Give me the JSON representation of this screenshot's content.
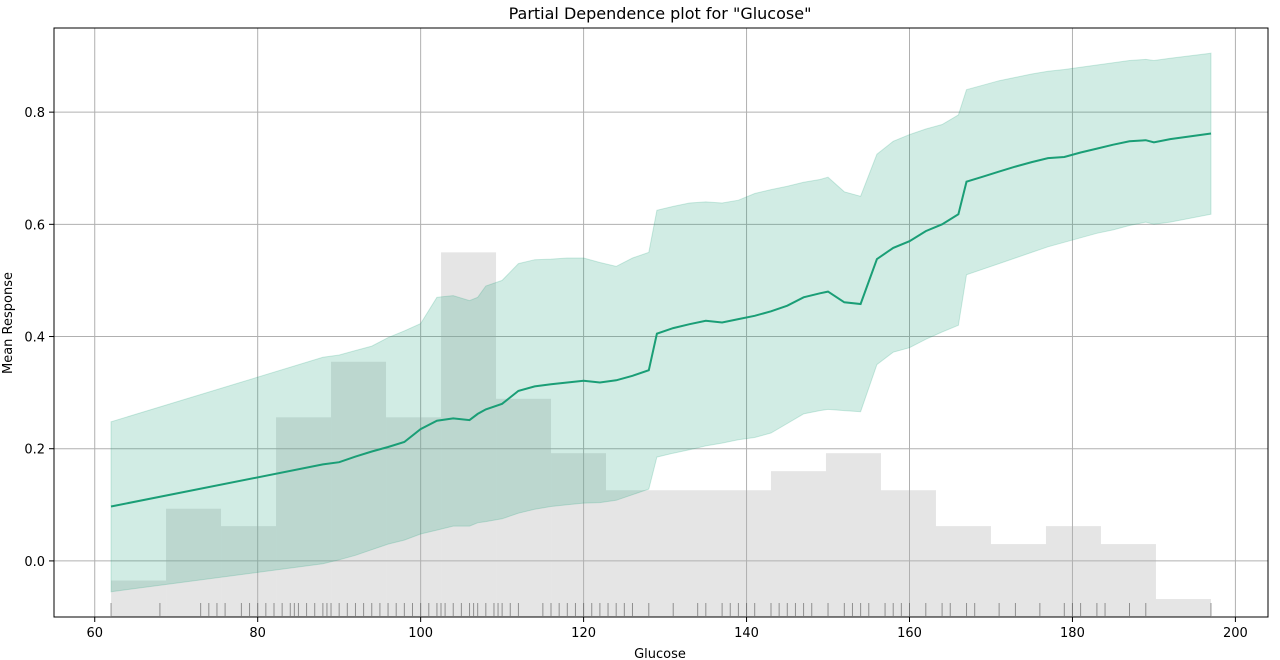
{
  "chart_data": {
    "type": "line",
    "title": "Partial Dependence plot for \"Glucose\"",
    "xlabel": "Glucose",
    "ylabel": "Mean Response",
    "xlim": [
      55,
      204
    ],
    "ylim": [
      -0.1,
      0.95
    ],
    "x_ticks": [
      60,
      80,
      100,
      120,
      140,
      160,
      180,
      200
    ],
    "y_ticks": [
      0.0,
      0.2,
      0.4,
      0.6,
      0.8
    ],
    "x_tick_labels": [
      "60",
      "80",
      "100",
      "120",
      "140",
      "160",
      "180",
      "200"
    ],
    "y_tick_labels": [
      "0.0",
      "0.2",
      "0.4",
      "0.6",
      "0.8"
    ],
    "grid": true,
    "colors": {
      "line": "#1a9e76",
      "band": "#1a9e76",
      "histogram": "#d3d3d3",
      "rug": "#555555",
      "grid": "#b0b0b0"
    },
    "series": [
      {
        "x": [
          62,
          88,
          90,
          92,
          94,
          96,
          98,
          100,
          102,
          104,
          106,
          107,
          108,
          110,
          112,
          114,
          116,
          118,
          120,
          122,
          124,
          126,
          128,
          129,
          131,
          133,
          135,
          137,
          139,
          141,
          143,
          145,
          147,
          149,
          150,
          152,
          154,
          156,
          158,
          160,
          162,
          164,
          166,
          167,
          169,
          171,
          173,
          175,
          177,
          179,
          181,
          183,
          185,
          187,
          189,
          190,
          192,
          197
        ],
        "values": [
          0.097,
          0.172,
          0.176,
          0.186,
          0.195,
          0.203,
          0.212,
          0.235,
          0.25,
          0.254,
          0.251,
          0.262,
          0.27,
          0.28,
          0.303,
          0.311,
          0.315,
          0.318,
          0.321,
          0.318,
          0.322,
          0.33,
          0.34,
          0.405,
          0.415,
          0.422,
          0.428,
          0.425,
          0.431,
          0.437,
          0.445,
          0.455,
          0.47,
          0.477,
          0.48,
          0.461,
          0.458,
          0.538,
          0.558,
          0.57,
          0.588,
          0.6,
          0.618,
          0.676,
          0.685,
          0.694,
          0.703,
          0.711,
          0.718,
          0.72,
          0.728,
          0.735,
          0.742,
          0.748,
          0.75,
          0.746,
          0.752,
          0.762
        ],
        "lower": [
          -0.055,
          -0.005,
          0.002,
          0.01,
          0.02,
          0.03,
          0.037,
          0.048,
          0.055,
          0.062,
          0.062,
          0.068,
          0.07,
          0.075,
          0.085,
          0.092,
          0.097,
          0.1,
          0.103,
          0.104,
          0.108,
          0.118,
          0.128,
          0.185,
          0.192,
          0.198,
          0.205,
          0.21,
          0.216,
          0.22,
          0.228,
          0.245,
          0.262,
          0.268,
          0.27,
          0.268,
          0.266,
          0.35,
          0.372,
          0.38,
          0.395,
          0.408,
          0.42,
          0.51,
          0.52,
          0.53,
          0.54,
          0.55,
          0.56,
          0.568,
          0.576,
          0.584,
          0.59,
          0.598,
          0.604,
          0.6,
          0.604,
          0.618
        ],
        "upper": [
          0.248,
          0.363,
          0.367,
          0.375,
          0.383,
          0.398,
          0.41,
          0.423,
          0.47,
          0.473,
          0.464,
          0.47,
          0.49,
          0.5,
          0.53,
          0.537,
          0.538,
          0.54,
          0.54,
          0.532,
          0.525,
          0.54,
          0.55,
          0.625,
          0.632,
          0.638,
          0.64,
          0.638,
          0.643,
          0.655,
          0.662,
          0.668,
          0.675,
          0.68,
          0.684,
          0.658,
          0.65,
          0.725,
          0.748,
          0.76,
          0.77,
          0.778,
          0.795,
          0.84,
          0.848,
          0.856,
          0.862,
          0.868,
          0.873,
          0.876,
          0.88,
          0.884,
          0.888,
          0.892,
          0.894,
          0.892,
          0.896,
          0.905
        ]
      }
    ],
    "histogram": {
      "edges": [
        62,
        68.75,
        75.5,
        82.25,
        89,
        95.75,
        102.5,
        109.25,
        116,
        122.75,
        129.5,
        136.25,
        143,
        149.75,
        156.5,
        163.25,
        170,
        176.75,
        183.5,
        190.25,
        197
      ],
      "heights": [
        -0.035,
        0.093,
        0.062,
        0.256,
        0.355,
        0.256,
        0.55,
        0.289,
        0.192,
        0.126,
        0.126,
        0.126,
        0.16,
        0.192,
        0.126,
        0.062,
        0.03,
        0.062,
        0.03,
        -0.068
      ]
    },
    "rug": [
      62,
      68,
      73,
      74,
      75,
      76,
      78,
      79,
      80,
      81,
      82,
      83,
      84,
      84.5,
      85,
      86,
      87,
      88,
      88.5,
      89,
      90,
      91,
      92,
      93,
      94,
      95,
      96,
      97,
      98,
      99,
      100,
      101,
      102,
      102.5,
      103,
      104,
      105,
      106,
      106.5,
      107,
      108,
      109,
      109.5,
      110,
      111,
      112,
      115,
      116,
      117,
      118,
      119,
      120,
      121,
      122,
      123,
      124,
      125,
      126,
      128,
      131,
      134,
      135,
      137,
      138,
      139,
      140,
      141,
      143,
      144,
      145,
      146,
      147,
      148,
      150,
      152,
      153,
      154,
      155,
      157,
      158,
      159,
      160,
      162,
      164,
      165,
      167,
      168,
      171,
      173,
      176,
      179,
      180,
      181,
      183,
      184,
      187,
      189,
      197
    ]
  }
}
